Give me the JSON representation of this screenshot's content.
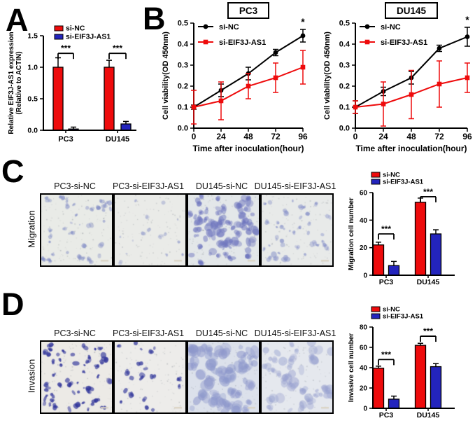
{
  "panels": {
    "A": {
      "letter": "A"
    },
    "B": {
      "letter": "B"
    },
    "C": {
      "letter": "C"
    },
    "D": {
      "letter": "D"
    }
  },
  "colors": {
    "red": "#ee0b0c",
    "blue": "#2324bd",
    "black": "#000000"
  },
  "chart_data": [
    {
      "id": "expression",
      "type": "bar",
      "ylabel_lines": [
        "Relative EIF3J-AS1 expression",
        "(Relative to ACTIN)"
      ],
      "ylim": [
        0,
        1.5
      ],
      "yticks": [
        "0.0",
        "0.5",
        "1.0",
        "1.5"
      ],
      "categories": [
        "PC3",
        "DU145"
      ],
      "series": [
        {
          "name": "si-NC",
          "color": "#ee0b0c",
          "values": [
            1.0,
            1.0
          ],
          "errors": [
            0.15,
            0.11
          ]
        },
        {
          "name": "si-EIF3J-AS1",
          "color": "#2324bd",
          "values": [
            0.02,
            0.1
          ],
          "errors": [
            0.03,
            0.04
          ]
        }
      ],
      "significance": [
        "***",
        "***"
      ],
      "legend_position": "top-inside",
      "grid": false
    },
    {
      "id": "pc3_viability",
      "type": "line",
      "title": "PC3",
      "xlabel": "Time after inoculation(hour)",
      "ylabel": "Cell viability(OD 450nm)",
      "ylim": [
        0,
        0.5
      ],
      "yticks": [
        "0.0",
        "0.1",
        "0.2",
        "0.3",
        "0.4",
        "0.5"
      ],
      "x": [
        0,
        24,
        48,
        72,
        96
      ],
      "series": [
        {
          "name": "si-NC",
          "color": "#000000",
          "marker": "circle",
          "values": [
            0.1,
            0.18,
            0.26,
            0.36,
            0.44
          ],
          "errors": [
            0.01,
            0.03,
            0.03,
            0.015,
            0.03
          ]
        },
        {
          "name": "si-EIF3J-AS1",
          "color": "#ee0b0c",
          "marker": "square",
          "values": [
            0.1,
            0.13,
            0.2,
            0.24,
            0.29
          ],
          "errors": [
            0.08,
            0.09,
            0.06,
            0.07,
            0.08
          ]
        }
      ],
      "annotation": "*",
      "legend_position": "top-left-inside",
      "grid": false
    },
    {
      "id": "du145_viability",
      "type": "line",
      "title": "DU145",
      "xlabel": "Time after inoculation(hour)",
      "ylabel": "Cell viability(OD 450nm)",
      "ylim": [
        0,
        0.5
      ],
      "yticks": [
        "0.0",
        "0.1",
        "0.2",
        "0.3",
        "0.4",
        "0.5"
      ],
      "x": [
        0,
        24,
        48,
        72,
        96
      ],
      "series": [
        {
          "name": "si-NC",
          "color": "#000000",
          "marker": "circle",
          "values": [
            0.1,
            0.175,
            0.24,
            0.38,
            0.435
          ],
          "errors": [
            0.03,
            0.02,
            0.03,
            0.015,
            0.045
          ]
        },
        {
          "name": "si-EIF3J-AS1",
          "color": "#ee0b0c",
          "marker": "square",
          "values": [
            0.1,
            0.115,
            0.16,
            0.21,
            0.24
          ],
          "errors": [
            0.03,
            0.105,
            0.115,
            0.11,
            0.07
          ]
        }
      ],
      "annotation": "*",
      "legend_position": "top-left-inside",
      "grid": false
    },
    {
      "id": "migration_count",
      "type": "bar",
      "ylabel_lines": [
        "Migration cell number"
      ],
      "ylim": [
        0,
        60
      ],
      "yticks": [
        "0",
        "20",
        "40",
        "60"
      ],
      "categories": [
        "PC3",
        "DU145"
      ],
      "series": [
        {
          "name": "si-NC",
          "color": "#ee0b0c",
          "values": [
            22,
            53
          ],
          "errors": [
            2,
            3
          ]
        },
        {
          "name": "si-EIF3J-AS1",
          "color": "#2324bd",
          "values": [
            7,
            30
          ],
          "errors": [
            3,
            3
          ]
        }
      ],
      "significance": [
        "***",
        "***"
      ],
      "legend_position": "top-inside",
      "grid": false
    },
    {
      "id": "invasion_count",
      "type": "bar",
      "ylabel_lines": [
        "Invasive cell number"
      ],
      "ylim": [
        0,
        80
      ],
      "yticks": [
        "0",
        "20",
        "40",
        "60",
        "80"
      ],
      "categories": [
        "PC3",
        "DU145"
      ],
      "series": [
        {
          "name": "si-NC",
          "color": "#ee0b0c",
          "values": [
            39.5,
            62
          ],
          "errors": [
            2,
            2
          ]
        },
        {
          "name": "si-EIF3J-AS1",
          "color": "#2324bd",
          "values": [
            9,
            41
          ],
          "errors": [
            3,
            3
          ]
        }
      ],
      "significance": [
        "***",
        "***"
      ],
      "legend_position": "top-inside",
      "grid": false
    }
  ],
  "microscopy": [
    {
      "panel": "C",
      "row_label": "Migration",
      "images": [
        {
          "label": "PC3-si-NC",
          "bg": "#e9ebe7",
          "color": "#7e89c4",
          "dots": 40,
          "min": 2,
          "max": 5,
          "alpha": 0.55
        },
        {
          "label": "PC3-si-EIF3J-AS1",
          "bg": "#eaebe8",
          "color": "#97a0cd",
          "dots": 15,
          "min": 1.5,
          "max": 4,
          "alpha": 0.5
        },
        {
          "label": "DU145-si-NC",
          "bg": "#e3e7e9",
          "color": "#7077bf",
          "dots": 80,
          "min": 3,
          "max": 9,
          "alpha": 0.6
        },
        {
          "label": "DU145-si-EIF3J-AS1",
          "bg": "#e8eae9",
          "color": "#8791c9",
          "dots": 40,
          "min": 2,
          "max": 6,
          "alpha": 0.55
        }
      ]
    },
    {
      "panel": "D",
      "row_label": "Invasion",
      "images": [
        {
          "label": "PC3-si-NC",
          "bg": "#eceae6",
          "color": "#32369b",
          "dots": 55,
          "min": 2,
          "max": 6,
          "alpha": 0.8
        },
        {
          "label": "PC3-si-EIF3J-AS1",
          "bg": "#edecea",
          "color": "#3a3f9e",
          "dots": 20,
          "min": 2,
          "max": 5,
          "alpha": 0.8
        },
        {
          "label": "DU145-si-NC",
          "bg": "#dce1eb",
          "color": "#8e98cc",
          "dots": 60,
          "min": 5,
          "max": 12,
          "alpha": 0.55
        },
        {
          "label": "DU145-si-EIF3J-AS1",
          "bg": "#e5e8ee",
          "color": "#99a2d0",
          "dots": 42,
          "min": 4,
          "max": 10,
          "alpha": 0.5
        }
      ]
    }
  ]
}
